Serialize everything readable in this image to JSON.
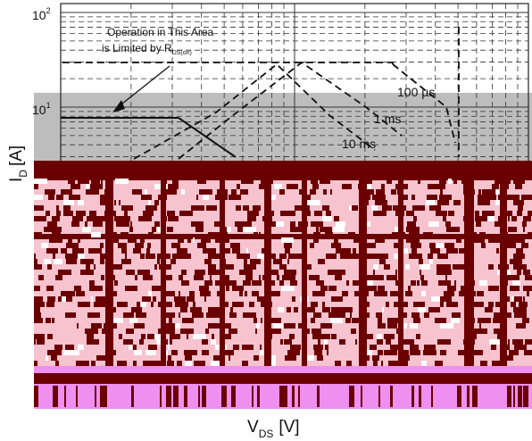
{
  "chart_data": {
    "type": "line",
    "title": "",
    "xlabel_main": "V",
    "xlabel_sub": "DS",
    "xlabel_unit": "[V]",
    "ylabel_main": "I",
    "ylabel_sub": "D",
    "ylabel_unit": "[A]",
    "y_scale": "log",
    "y_ticks": [
      {
        "base": "10",
        "exp": "2",
        "value": 100
      },
      {
        "base": "10",
        "exp": "1",
        "value": 10
      }
    ],
    "annotation": {
      "line1": "Operation in This Area",
      "line2_prefix": "is Limited by R",
      "line2_sub": "DS(on)"
    },
    "curve_labels": [
      "100 µs",
      "1 ms",
      "10 ms"
    ],
    "colors": {
      "corrupt_dark": "#6b0000",
      "corrupt_light": "#f6c3cf",
      "corrupt_magenta": "#ef8fef",
      "band_gray": "#bdbdbd"
    },
    "grid": true
  }
}
